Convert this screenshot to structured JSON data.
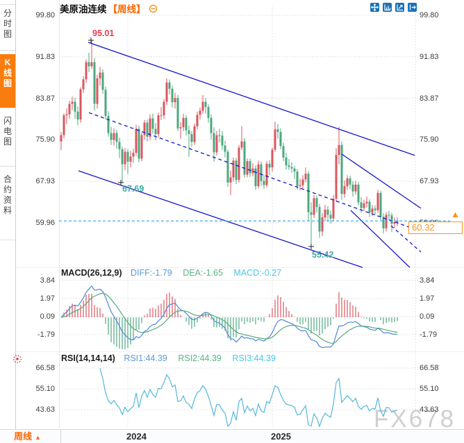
{
  "sidebar": {
    "items": [
      {
        "label": "分时图",
        "active": false
      },
      {
        "label": "K线图",
        "active": true
      },
      {
        "label": "闪电图",
        "active": false
      },
      {
        "label": "合约资料",
        "active": false
      }
    ]
  },
  "header": {
    "title": "美原油连续",
    "period_tag": "【周线】",
    "icons": [
      "pan-icon",
      "axis-scale-icon",
      "axis-playback-icon",
      "exit-right-icon"
    ]
  },
  "ui": {
    "price_tag": "60.32",
    "price_arrow": "▲",
    "watermark": "FX678",
    "footer_period": "周线",
    "footer_arrow": "▲"
  },
  "macd_header": {
    "name": "MACD(26,12,9)",
    "diff": "DIFF:-1.79",
    "dea": "DEA:-1.65",
    "macd": "MACD:-0.27"
  },
  "rsi_header": {
    "name": "RSI(14,14,14)",
    "rsi1": "RSI1:44.39",
    "rsi2": "RSI2:44.39",
    "rsi3": "RSI3:44.39"
  },
  "colors": {
    "up": "#d9565f",
    "down": "#4ba87e",
    "trend": "#1414cc",
    "price_line": "#29a3f0",
    "accent_orange": "#f7941d",
    "diff_line": "#4f86d8",
    "dea_line": "#53ab7c",
    "rsi_line": "#53b7dc",
    "label_blue": "#5b9bd5",
    "label_green": "#57b580",
    "label_cyan": "#45c8e8",
    "swing_high": "#e84050",
    "swing_low": "#45a8a2"
  },
  "chart_data": {
    "type": "candlestick",
    "symbol": "美原油连续",
    "period": "周线",
    "x_year_labels": [
      "2024",
      "2025"
    ],
    "main": {
      "y_ticks": [
        99.8,
        91.83,
        83.87,
        75.9,
        67.93,
        59.96
      ],
      "y_tick_labels": [
        "99.80",
        "91.83",
        "83.87",
        "75.90",
        "67.93",
        "59.96"
      ],
      "current_price": 60.32,
      "swing_annotations": [
        {
          "label": "95.01",
          "price": 95.01,
          "week": 10.75,
          "type": "high"
        },
        {
          "label": "67.69",
          "price": 67.69,
          "week": 21.5,
          "type": "low"
        },
        {
          "label": "55.42",
          "price": 55.42,
          "week": 90,
          "type": "low"
        }
      ],
      "trendlines": [
        {
          "name": "channel-top",
          "style": "solid",
          "w1": 9.75,
          "p1": 94.6,
          "w2": 127.3,
          "p2": 72.9
        },
        {
          "name": "channel-mid",
          "style": "dashed",
          "w1": 10.0,
          "p1": 81.1,
          "w2": 127.3,
          "p2": 58.75
        },
        {
          "name": "channel-bottom",
          "style": "solid",
          "w1": 6.25,
          "p1": 69.95,
          "w2": 108.5,
          "p2": 51.4
        },
        {
          "name": "wedge-top",
          "style": "solid",
          "w1": 101.0,
          "p1": 73.15,
          "w2": 129.5,
          "p2": 62.75
        },
        {
          "name": "wedge-bottom",
          "style": "solid",
          "w1": 104.25,
          "p1": 62.35,
          "w2": 125.5,
          "p2": 51.4
        },
        {
          "name": "wedge-mid",
          "style": "dashed",
          "w1": 118.75,
          "p1": 59.4,
          "w2": 129.5,
          "p2": 54.35
        }
      ],
      "candles_ohlc": [
        [
          75.6,
          77.4,
          73.9,
          76.8
        ],
        [
          76.8,
          81.0,
          76.2,
          80.6
        ],
        [
          80.6,
          81.9,
          78.9,
          80.8
        ],
        [
          80.8,
          83.4,
          79.9,
          82.8
        ],
        [
          82.8,
          84.2,
          81.6,
          83.2
        ],
        [
          83.2,
          84.0,
          79.9,
          81.3
        ],
        [
          81.3,
          82.3,
          78.7,
          79.8
        ],
        [
          79.8,
          86.0,
          79.2,
          85.6
        ],
        [
          85.6,
          88.1,
          84.9,
          87.5
        ],
        [
          87.5,
          91.3,
          86.8,
          90.8
        ],
        [
          90.8,
          92.6,
          88.9,
          90.0
        ],
        [
          90.0,
          95.01,
          89.5,
          90.8
        ],
        [
          90.8,
          91.6,
          81.5,
          82.8
        ],
        [
          82.8,
          88.4,
          81.9,
          87.7
        ],
        [
          87.7,
          89.9,
          86.3,
          88.8
        ],
        [
          88.8,
          89.4,
          84.7,
          85.5
        ],
        [
          85.5,
          86.1,
          79.8,
          80.5
        ],
        [
          80.5,
          81.4,
          76.5,
          77.2
        ],
        [
          77.2,
          78.4,
          74.9,
          75.9
        ],
        [
          75.9,
          78.1,
          74.8,
          77.2
        ],
        [
          77.2,
          77.8,
          74.2,
          75.5
        ],
        [
          75.5,
          76.3,
          72.4,
          74.1
        ],
        [
          74.1,
          74.6,
          67.69,
          71.2
        ],
        [
          71.2,
          74.3,
          70.1,
          73.6
        ],
        [
          73.6,
          74.1,
          69.3,
          71.7
        ],
        [
          71.7,
          73.8,
          70.6,
          72.7
        ],
        [
          72.7,
          74.2,
          71.5,
          73.4
        ],
        [
          73.4,
          78.8,
          72.8,
          78.0
        ],
        [
          78.0,
          78.6,
          71.6,
          72.3
        ],
        [
          72.3,
          77.3,
          71.8,
          76.8
        ],
        [
          76.8,
          79.7,
          75.9,
          79.2
        ],
        [
          79.2,
          79.8,
          75.6,
          76.5
        ],
        [
          76.5,
          80.8,
          75.9,
          80.0
        ],
        [
          80.0,
          80.9,
          77.1,
          78.0
        ],
        [
          78.0,
          79.1,
          75.8,
          77.0
        ],
        [
          77.0,
          81.1,
          76.4,
          80.6
        ],
        [
          80.6,
          82.2,
          79.7,
          80.6
        ],
        [
          80.6,
          83.7,
          79.9,
          83.2
        ],
        [
          83.2,
          87.7,
          82.6,
          86.9
        ],
        [
          86.9,
          87.5,
          84.6,
          85.7
        ],
        [
          85.7,
          86.3,
          82.1,
          83.1
        ],
        [
          83.1,
          84.9,
          81.9,
          83.9
        ],
        [
          83.9,
          84.5,
          77.6,
          78.1
        ],
        [
          78.1,
          79.3,
          76.1,
          78.3
        ],
        [
          78.3,
          80.9,
          77.6,
          80.1
        ],
        [
          80.1,
          80.6,
          76.7,
          77.7
        ],
        [
          77.7,
          78.6,
          72.6,
          77.0
        ],
        [
          77.0,
          77.6,
          74.6,
          75.5
        ],
        [
          75.5,
          79.0,
          74.9,
          78.5
        ],
        [
          78.5,
          81.3,
          77.9,
          80.7
        ],
        [
          80.7,
          82.1,
          79.8,
          81.5
        ],
        [
          81.5,
          84.5,
          80.9,
          83.2
        ],
        [
          83.2,
          83.9,
          80.9,
          82.2
        ],
        [
          82.2,
          82.7,
          79.2,
          80.1
        ],
        [
          80.1,
          80.8,
          76.0,
          77.2
        ],
        [
          77.2,
          78.3,
          71.7,
          73.5
        ],
        [
          73.5,
          77.6,
          72.9,
          76.8
        ],
        [
          76.8,
          78.0,
          75.4,
          76.7
        ],
        [
          76.7,
          77.6,
          74.0,
          74.8
        ],
        [
          74.8,
          75.7,
          72.5,
          73.6
        ],
        [
          73.6,
          74.0,
          66.9,
          67.7
        ],
        [
          67.7,
          70.0,
          65.3,
          68.7
        ],
        [
          68.7,
          72.5,
          67.9,
          71.9
        ],
        [
          71.9,
          72.4,
          67.4,
          68.2
        ],
        [
          68.2,
          74.9,
          67.7,
          74.4
        ],
        [
          74.4,
          78.5,
          73.9,
          75.6
        ],
        [
          75.6,
          76.2,
          68.6,
          69.2
        ],
        [
          69.2,
          72.3,
          68.7,
          71.8
        ],
        [
          71.8,
          72.3,
          68.8,
          69.5
        ],
        [
          69.5,
          71.4,
          68.9,
          70.4
        ],
        [
          70.4,
          71.0,
          66.3,
          67.0
        ],
        [
          67.0,
          71.9,
          66.6,
          71.2
        ],
        [
          71.2,
          71.7,
          67.1,
          68.0
        ],
        [
          68.0,
          69.2,
          66.5,
          67.2
        ],
        [
          67.2,
          71.8,
          66.8,
          71.3
        ],
        [
          71.3,
          72.0,
          69.1,
          70.6
        ],
        [
          70.6,
          74.4,
          69.8,
          74.0
        ],
        [
          74.0,
          79.4,
          73.6,
          77.9
        ],
        [
          77.9,
          78.9,
          76.1,
          77.4
        ],
        [
          77.4,
          78.1,
          74.1,
          74.7
        ],
        [
          74.7,
          75.3,
          71.8,
          72.5
        ],
        [
          72.5,
          73.4,
          70.2,
          71.0
        ],
        [
          71.0,
          72.2,
          70.1,
          70.7
        ],
        [
          70.7,
          71.6,
          69.6,
          70.4
        ],
        [
          70.4,
          70.9,
          68.4,
          69.8
        ],
        [
          69.8,
          70.3,
          66.4,
          67.0
        ],
        [
          67.0,
          68.4,
          66.2,
          67.2
        ],
        [
          67.2,
          69.1,
          66.6,
          68.3
        ],
        [
          68.3,
          70.6,
          67.7,
          69.4
        ],
        [
          69.4,
          69.9,
          60.4,
          62.0
        ],
        [
          62.0,
          63.9,
          55.42,
          61.5
        ],
        [
          61.5,
          65.3,
          60.9,
          64.7
        ],
        [
          64.7,
          65.2,
          61.9,
          63.0
        ],
        [
          63.0,
          63.6,
          57.1,
          58.3
        ],
        [
          58.3,
          61.8,
          57.4,
          61.0
        ],
        [
          61.0,
          63.4,
          60.3,
          62.5
        ],
        [
          62.5,
          63.2,
          60.2,
          61.5
        ],
        [
          61.5,
          62.3,
          59.8,
          60.8
        ],
        [
          60.8,
          65.3,
          60.2,
          64.6
        ],
        [
          64.6,
          74.3,
          64.0,
          73.0
        ],
        [
          73.0,
          78.4,
          71.2,
          74.9
        ],
        [
          74.9,
          75.6,
          64.4,
          65.5
        ],
        [
          65.5,
          68.1,
          64.8,
          67.0
        ],
        [
          67.0,
          69.1,
          66.3,
          68.5
        ],
        [
          68.5,
          69.0,
          66.4,
          67.3
        ],
        [
          67.3,
          68.0,
          65.0,
          66.0
        ],
        [
          66.0,
          68.0,
          65.4,
          67.3
        ],
        [
          67.3,
          67.8,
          63.3,
          63.9
        ],
        [
          63.9,
          64.9,
          61.9,
          62.8
        ],
        [
          62.8,
          64.4,
          62.2,
          63.7
        ],
        [
          63.7,
          65.0,
          62.9,
          64.0
        ],
        [
          64.0,
          64.5,
          61.1,
          61.9
        ],
        [
          61.9,
          63.4,
          61.2,
          62.7
        ],
        [
          62.7,
          63.3,
          61.5,
          62.4
        ],
        [
          62.4,
          66.3,
          61.9,
          65.7
        ],
        [
          65.7,
          66.1,
          60.5,
          61.1
        ],
        [
          61.1,
          61.8,
          57.9,
          58.9
        ],
        [
          58.9,
          62.0,
          58.3,
          61.5
        ],
        [
          61.5,
          62.3,
          60.4,
          61.4
        ],
        [
          61.4,
          61.9,
          58.2,
          59.8
        ],
        [
          59.8,
          61.0,
          59.0,
          60.1
        ],
        [
          60.1,
          61.0,
          59.3,
          60.32
        ]
      ]
    },
    "macd": {
      "params": [
        26,
        12,
        9
      ],
      "diff": -1.79,
      "dea": -1.65,
      "macd": -0.27,
      "y_ticks": [
        3.84,
        1.97,
        0.09,
        -1.79
      ],
      "y_tick_labels": [
        "3.84",
        "1.97",
        "0.09",
        "-1.79"
      ]
    },
    "rsi": {
      "params": [
        14,
        14,
        14
      ],
      "rsi1": 44.39,
      "rsi2": 44.39,
      "rsi3": 44.39,
      "y_ticks": [
        66.58,
        55.1,
        43.63
      ],
      "y_tick_labels": [
        "66.58",
        "55.10",
        "43.63"
      ]
    }
  }
}
